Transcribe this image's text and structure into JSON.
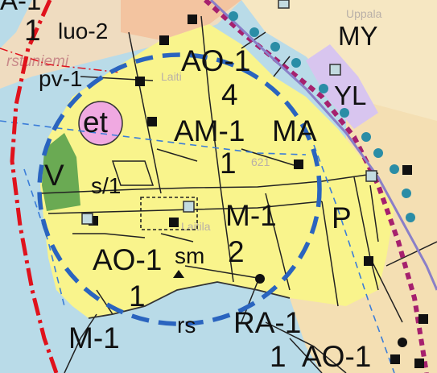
{
  "map": {
    "zones": [
      "MY",
      "YL",
      "AO-1",
      "4",
      "1",
      "luo-2",
      "pv-1",
      "et",
      "AM-1",
      "MA",
      "1",
      "V",
      "s/1",
      "M-1",
      "2",
      "P",
      "AO-1",
      "sm",
      "1",
      "rs",
      "RA-1",
      "M-1",
      "1",
      "AO-1"
    ],
    "background_text": [
      "rstuniemi",
      "Laiti",
      "Laitila",
      "Uppala",
      "621",
      "A-1"
    ]
  },
  "colors": {
    "water": "#b9dbe8",
    "residential": "#f9f48c",
    "agricultural": "#f6e7c2",
    "sports": "#f3c4a0",
    "recreation": "#6aaa53",
    "public": "#d8c5ef",
    "et_zone": "#f0a9e1",
    "circle": "#2a64bf",
    "boundary_red": "#e0121c",
    "boundary_magenta": "#a6206e"
  }
}
